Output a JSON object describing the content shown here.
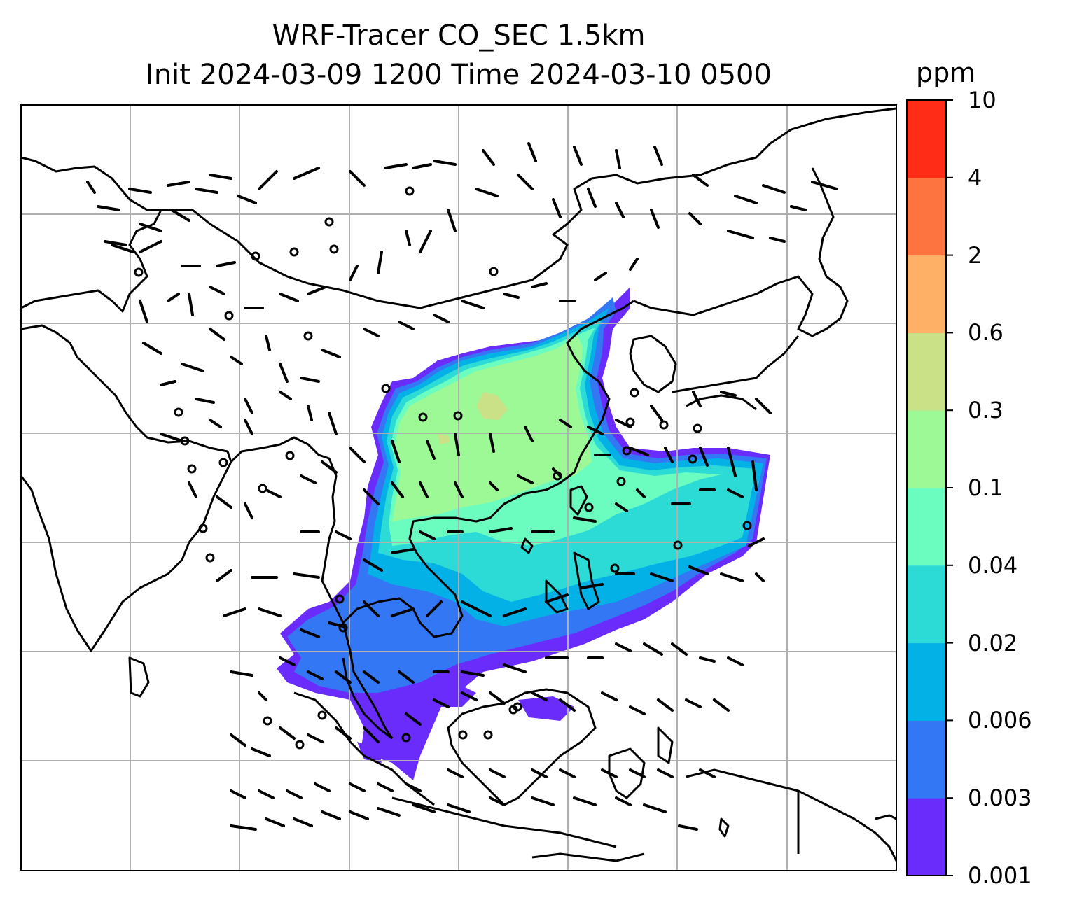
{
  "title": {
    "line1": "WRF-Tracer CO_SEC 1.5km",
    "line2": "Init 2024-03-09 1200 Time 2024-03-10 0500"
  },
  "colorbar": {
    "unit": "ppm",
    "levels": [
      "0.001",
      "0.003",
      "0.006",
      "0.02",
      "0.04",
      "0.1",
      "0.3",
      "0.6",
      "2",
      "4",
      "10"
    ],
    "colors": [
      "#6a2cfb",
      "#3477f4",
      "#04b1e7",
      "#2cdbd6",
      "#6bfcc0",
      "#9cf995",
      "#cbe187",
      "#feb067",
      "#fe7440",
      "#ff2d18"
    ]
  },
  "map": {
    "type": "filled-contour-with-wind-barbs",
    "field": "CO_SEC tracer concentration at 1.5km",
    "grid": "on",
    "region": "South, Southeast and East Asia"
  }
}
